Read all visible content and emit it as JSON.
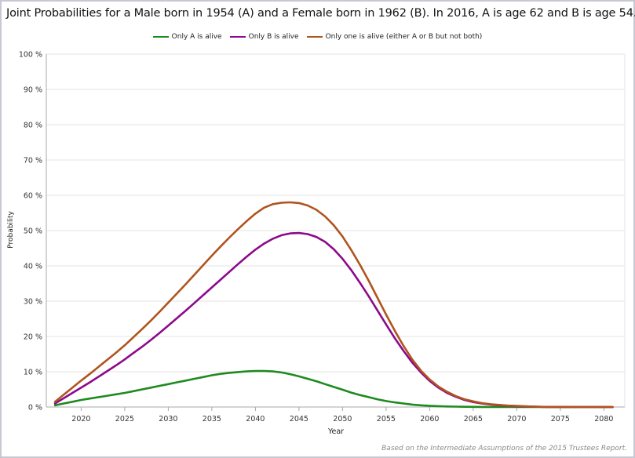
{
  "chart_data": {
    "type": "line",
    "title": "Joint Probabilities for a Male born in 1954 (A) and a Female born in 1962 (B). In 2016, A is age 62 and B is age 54.",
    "xlabel": "Year",
    "ylabel": "Probability",
    "xlim": [
      2017,
      2081
    ],
    "ylim": [
      0,
      100
    ],
    "x_ticks": [
      2020,
      2025,
      2030,
      2035,
      2040,
      2045,
      2050,
      2055,
      2060,
      2065,
      2070,
      2075,
      2080
    ],
    "x_tick_labels": [
      "2020",
      "2025",
      "2030",
      "2035",
      "2040",
      "2045",
      "2050",
      "2055",
      "2060",
      "2065",
      "2070",
      "2075",
      "2080"
    ],
    "y_ticks": [
      0,
      10,
      20,
      30,
      40,
      50,
      60,
      70,
      80,
      90,
      100
    ],
    "y_tick_labels": [
      "0 %",
      "10 %",
      "20 %",
      "30 %",
      "40 %",
      "50 %",
      "60 %",
      "70 %",
      "80 %",
      "90 %",
      "100 %"
    ],
    "grid": "horizontal",
    "legend_position": "top-center",
    "x": [
      2017,
      2018,
      2019,
      2020,
      2021,
      2022,
      2023,
      2024,
      2025,
      2026,
      2027,
      2028,
      2029,
      2030,
      2031,
      2032,
      2033,
      2034,
      2035,
      2036,
      2037,
      2038,
      2039,
      2040,
      2041,
      2042,
      2043,
      2044,
      2045,
      2046,
      2047,
      2048,
      2049,
      2050,
      2051,
      2052,
      2053,
      2054,
      2055,
      2056,
      2057,
      2058,
      2059,
      2060,
      2061,
      2062,
      2063,
      2064,
      2065,
      2066,
      2067,
      2068,
      2069,
      2070,
      2071,
      2072,
      2073,
      2074,
      2075,
      2076,
      2077,
      2078,
      2079,
      2080,
      2081
    ],
    "series": [
      {
        "name": "Only A is alive",
        "color": "#1f8a1f",
        "values": [
          0.5,
          1.0,
          1.5,
          2.0,
          2.4,
          2.8,
          3.2,
          3.6,
          4.0,
          4.5,
          5.0,
          5.5,
          6.0,
          6.5,
          7.0,
          7.5,
          8.0,
          8.5,
          9.0,
          9.4,
          9.7,
          9.9,
          10.1,
          10.2,
          10.2,
          10.1,
          9.8,
          9.3,
          8.7,
          8.0,
          7.3,
          6.5,
          5.7,
          4.9,
          4.1,
          3.4,
          2.8,
          2.2,
          1.7,
          1.3,
          1.0,
          0.7,
          0.5,
          0.35,
          0.25,
          0.15,
          0.1,
          0.06,
          0.04,
          0.02,
          0.01,
          0,
          0,
          0,
          0,
          0,
          0,
          0,
          0,
          0,
          0,
          0,
          0,
          0,
          0
        ]
      },
      {
        "name": "Only B is alive",
        "color": "#8b0a8b",
        "values": [
          1.0,
          2.5,
          4.0,
          5.5,
          7.0,
          8.6,
          10.2,
          11.8,
          13.5,
          15.3,
          17.1,
          19.0,
          21.0,
          23.1,
          25.2,
          27.3,
          29.5,
          31.7,
          33.9,
          36.1,
          38.3,
          40.5,
          42.6,
          44.6,
          46.3,
          47.7,
          48.7,
          49.2,
          49.3,
          49.0,
          48.2,
          46.8,
          44.7,
          42.0,
          38.8,
          35.2,
          31.4,
          27.4,
          23.4,
          19.5,
          15.9,
          12.6,
          9.8,
          7.4,
          5.5,
          4.0,
          2.9,
          2.0,
          1.4,
          1.0,
          0.7,
          0.5,
          0.35,
          0.25,
          0.15,
          0.1,
          0.05,
          0.03,
          0.02,
          0.01,
          0,
          0,
          0,
          0,
          0
        ]
      },
      {
        "name": "Only one is alive (either A or B but not both)",
        "color": "#b0541e",
        "values": [
          1.5,
          3.5,
          5.5,
          7.5,
          9.4,
          11.4,
          13.4,
          15.4,
          17.5,
          19.8,
          22.1,
          24.5,
          27.0,
          29.6,
          32.2,
          34.8,
          37.5,
          40.2,
          42.9,
          45.5,
          48.0,
          50.4,
          52.7,
          54.8,
          56.5,
          57.5,
          57.9,
          58.0,
          57.8,
          57.1,
          55.9,
          54.0,
          51.5,
          48.3,
          44.5,
          40.3,
          35.8,
          31.0,
          26.2,
          21.6,
          17.3,
          13.5,
          10.3,
          7.8,
          5.8,
          4.3,
          3.1,
          2.2,
          1.6,
          1.1,
          0.8,
          0.6,
          0.4,
          0.3,
          0.2,
          0.1,
          0.05,
          0.03,
          0.02,
          0.01,
          0,
          0,
          0,
          0,
          0
        ]
      }
    ]
  },
  "footnote": "Based on the Intermediate Assumptions of the 2015 Trustees Report."
}
